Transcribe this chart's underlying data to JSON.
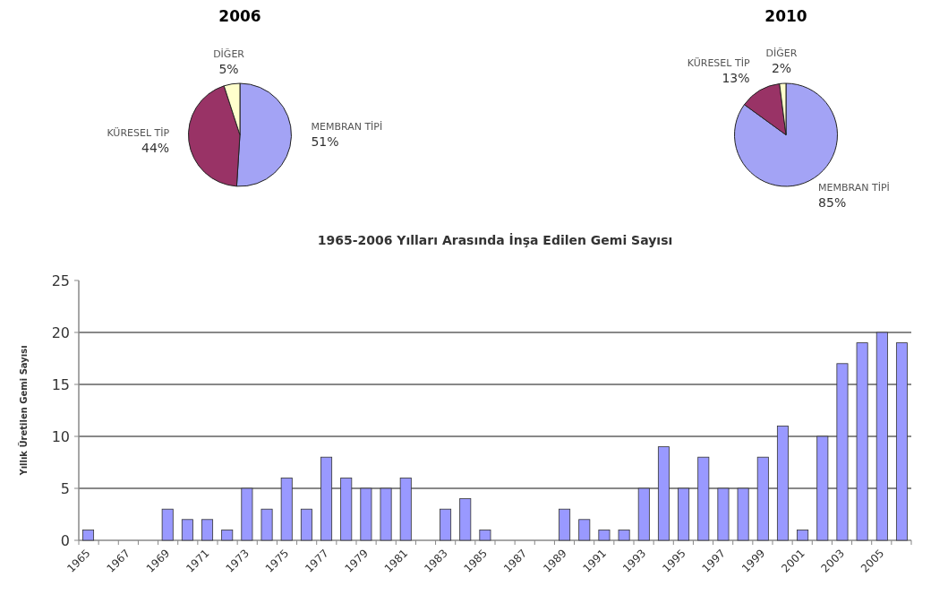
{
  "chart_data": [
    {
      "type": "pie",
      "title": "2006",
      "categories": [
        "MEMBRAN TİPİ",
        "KÜRESEL TİP",
        "DİĞER"
      ],
      "values": [
        51,
        44,
        5
      ],
      "colors": [
        "#a3a3f5",
        "#993366",
        "#ffffcc"
      ],
      "value_labels": [
        "51%",
        "44%",
        "5%"
      ]
    },
    {
      "type": "pie",
      "title": "2010",
      "categories": [
        "MEMBRAN TİPİ",
        "KÜRESEL TİP",
        "DİĞER"
      ],
      "values": [
        85,
        13,
        2
      ],
      "colors": [
        "#a3a3f5",
        "#993366",
        "#ffffcc"
      ],
      "value_labels": [
        "85%",
        "13%",
        "2%"
      ]
    },
    {
      "type": "bar",
      "title": "1965-2006 Yılları Arasında İnşa Edilen Gemi Sayısı",
      "ylabel": "Yıllık Üretilen Gemi Sayısı",
      "categories": [
        "1965",
        null,
        "1967",
        null,
        "1969",
        null,
        "1971",
        null,
        "1973",
        null,
        "1975",
        null,
        "1977",
        null,
        "1979",
        null,
        "1981",
        null,
        "1983",
        null,
        "1985",
        null,
        "1987",
        null,
        "1989",
        null,
        "1991",
        null,
        "1993",
        null,
        "1995",
        null,
        "1997",
        null,
        "1999",
        null,
        "2001",
        null,
        "2003",
        null,
        "2005",
        null
      ],
      "values": [
        1,
        0,
        0,
        0,
        3,
        2,
        2,
        1,
        5,
        3,
        6,
        3,
        8,
        6,
        5,
        5,
        6,
        0,
        3,
        4,
        1,
        0,
        0,
        0,
        3,
        2,
        1,
        1,
        5,
        9,
        5,
        8,
        5,
        5,
        8,
        11,
        1,
        10,
        17,
        19,
        20,
        19
      ],
      "color": "#9999ff",
      "ylim": [
        0,
        25
      ],
      "yticks": [
        0,
        5,
        10,
        15,
        20,
        25
      ],
      "grid": "y"
    }
  ]
}
